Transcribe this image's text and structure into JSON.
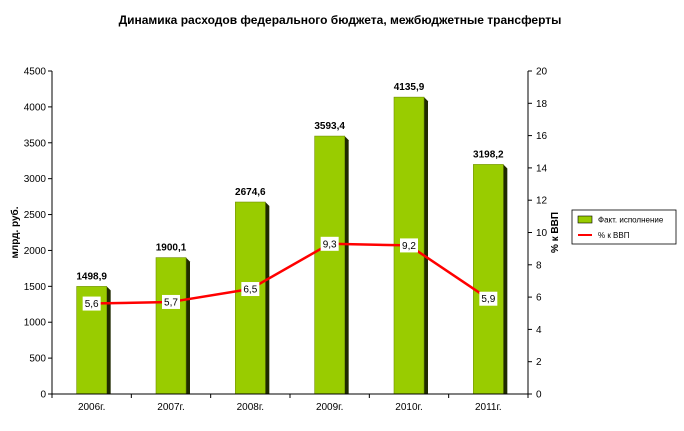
{
  "chart_data": {
    "type": "bar",
    "title": "Динамика расходов федерального бюджета, межбюджетные трансферты",
    "categories": [
      "2006г.",
      "2007г.",
      "2008г.",
      "2009г.",
      "2010г.",
      "2011г."
    ],
    "series": [
      {
        "name": "Факт. исполнение",
        "type": "bar",
        "axis": "left",
        "values": [
          1498.9,
          1900.1,
          2674.6,
          3593.4,
          4135.9,
          3198.2
        ],
        "labels": [
          "1498,9",
          "1900,1",
          "2674,6",
          "3593,4",
          "4135,9",
          "3198,2"
        ],
        "color": "#99cc00"
      },
      {
        "name": "% к ВВП",
        "type": "line",
        "axis": "right",
        "values": [
          5.6,
          5.7,
          6.5,
          9.3,
          9.2,
          5.9
        ],
        "labels": [
          "5,6",
          "5,7",
          "6,5",
          "9,3",
          "9,2",
          "5,9"
        ],
        "color": "#ff0000"
      }
    ],
    "y_left": {
      "label": "млрд. руб.",
      "range": [
        0,
        4500
      ],
      "ticks": [
        "0",
        "500",
        "1000",
        "1500",
        "2000",
        "2500",
        "3000",
        "3500",
        "4000",
        "4500"
      ]
    },
    "y_right": {
      "label": "% к ВВП",
      "range": [
        0,
        20
      ],
      "ticks": [
        "0",
        "2",
        "4",
        "6",
        "8",
        "10",
        "12",
        "14",
        "16",
        "18",
        "20"
      ]
    },
    "grid": false,
    "legend": "right"
  }
}
